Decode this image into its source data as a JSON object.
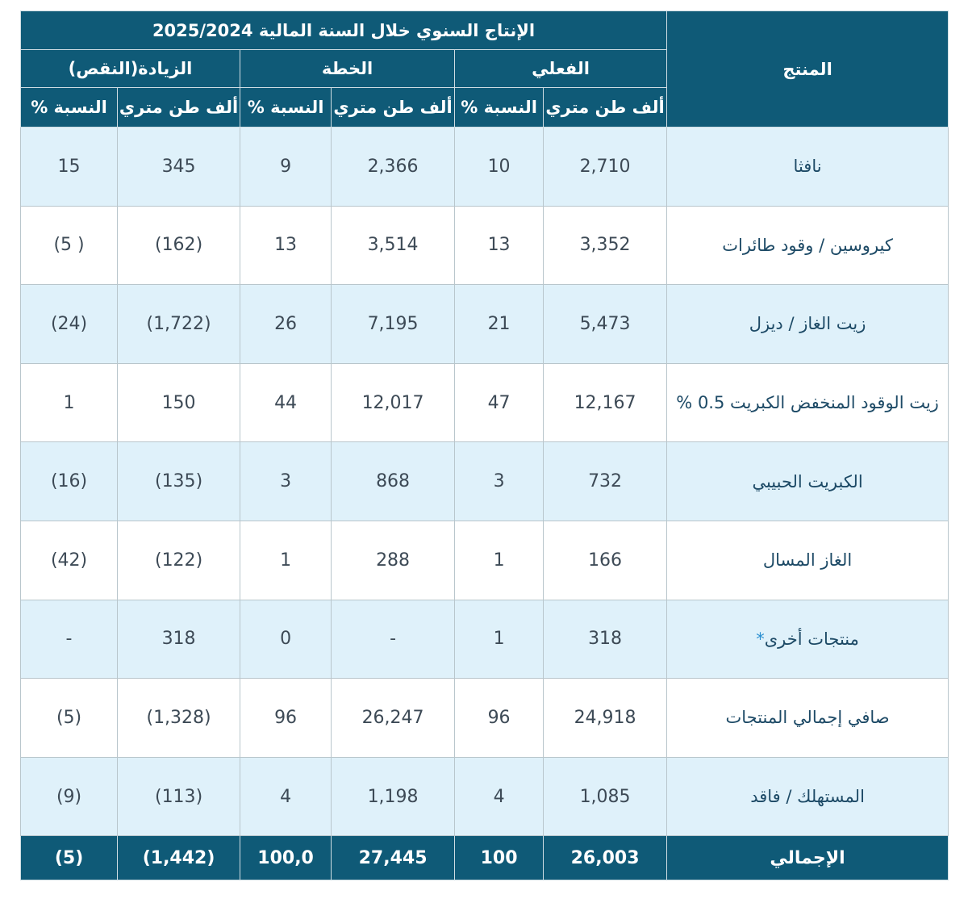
{
  "header": {
    "product": "المنتج",
    "title": "الإنتاج السنوي خلال السنة المالية 2025/2024",
    "groups": [
      "الفعلي",
      "الخطة",
      "الزيادة(النقص)"
    ],
    "subheaders": [
      "ألف طن متري",
      "النسبة %",
      "ألف طن متري",
      "النسبة %",
      "ألف طن متري",
      "النسبة %"
    ]
  },
  "rows": [
    {
      "product": "نافثا",
      "cells": [
        "2,710",
        "10",
        "2,366",
        "9",
        "345",
        "15"
      ]
    },
    {
      "product": "كيروسين / وقود طائرات",
      "cells": [
        "3,352",
        "13",
        "3,514",
        "13",
        "(162)",
        "( 5)"
      ]
    },
    {
      "product": "زيت الغاز / ديزل",
      "cells": [
        "5,473",
        "21",
        "7,195",
        "26",
        "(1,722)",
        "(24)"
      ]
    },
    {
      "product": "زيت الوقود المنخفض الكبريت 0.5 %",
      "cells": [
        "12,167",
        "47",
        "12,017",
        "44",
        "150",
        "1"
      ]
    },
    {
      "product": "الكبريت الحبيبي",
      "cells": [
        "732",
        "3",
        "868",
        "3",
        "(135)",
        "(16)"
      ]
    },
    {
      "product": "الغاز المسال",
      "cells": [
        "166",
        "1",
        "288",
        "1",
        "(122)",
        "(42)"
      ]
    },
    {
      "product": "منتجات أخرى",
      "marker": "*",
      "cells": [
        "318",
        "1",
        "-",
        "0",
        "318",
        "-"
      ]
    },
    {
      "product": "صافي إجمالي المنتجات",
      "cells": [
        "24,918",
        "96",
        "26,247",
        "96",
        "(1,328)",
        "(5)"
      ]
    },
    {
      "product": "المستهلك / فاقد",
      "cells": [
        "1,085",
        "4",
        "1,198",
        "4",
        "(113)",
        "(9)"
      ]
    }
  ],
  "total": {
    "label": "الإجمالي",
    "cells": [
      "26,003",
      "100",
      "27,445",
      "100,0",
      "(1,442)",
      "(5)"
    ]
  }
}
